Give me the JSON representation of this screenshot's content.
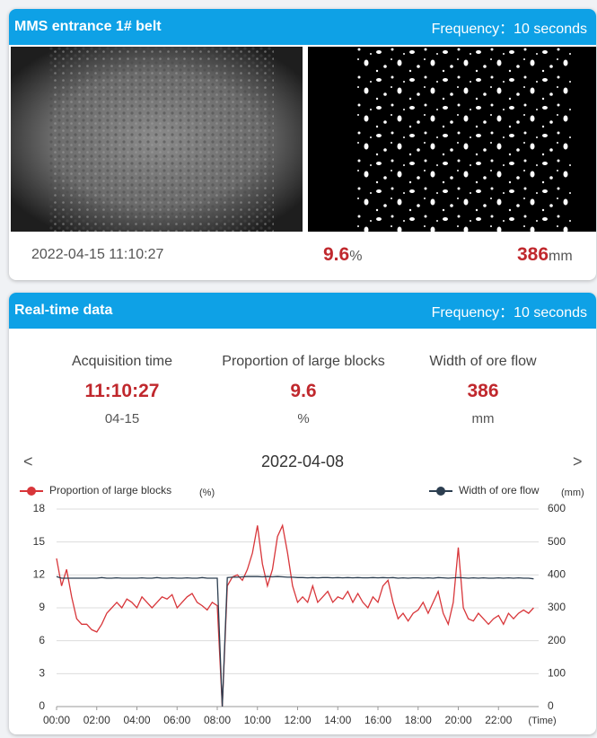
{
  "panel1": {
    "title": "MMS entrance 1# belt",
    "frequency": "Frequency：10 seconds",
    "timestamp": "2022-04-15 11:10:27",
    "proportion": 9.6,
    "proportion_unit": "%",
    "width": 386,
    "width_unit": "mm"
  },
  "panel2": {
    "title": "Real-time data",
    "frequency": "Frequency：10 seconds",
    "metrics": [
      {
        "label": "Acquisition time",
        "value": "11:10:27",
        "sub": "04-15"
      },
      {
        "label": "Proportion of large blocks",
        "value": 9.6,
        "sub": "%"
      },
      {
        "label": "Width of ore flow",
        "value": 386,
        "sub": "mm"
      }
    ],
    "nav": {
      "prev": "<",
      "date": "2022-04-08",
      "next": ">"
    }
  },
  "chart_data": {
    "type": "line",
    "y_unit": "(%)",
    "y2_unit": "(mm)",
    "x_label": "(Time)",
    "grid": true,
    "x": [
      0,
      0.25,
      0.5,
      0.75,
      1,
      1.25,
      1.5,
      1.75,
      2,
      2.25,
      2.5,
      2.75,
      3,
      3.25,
      3.5,
      3.75,
      4,
      4.25,
      4.5,
      4.75,
      5,
      5.25,
      5.5,
      5.75,
      6,
      6.25,
      6.5,
      6.75,
      7,
      7.25,
      7.5,
      7.75,
      8,
      8.25,
      8.5,
      8.75,
      9,
      9.25,
      9.5,
      9.75,
      10,
      10.25,
      10.5,
      10.75,
      11,
      11.25,
      11.5,
      11.75,
      12,
      12.25,
      12.5,
      12.75,
      13,
      13.25,
      13.5,
      13.75,
      14,
      14.25,
      14.5,
      14.75,
      15,
      15.25,
      15.5,
      15.75,
      16,
      16.25,
      16.5,
      16.75,
      17,
      17.25,
      17.5,
      17.75,
      18,
      18.25,
      18.5,
      18.75,
      19,
      19.25,
      19.5,
      19.75,
      20,
      20.25,
      20.5,
      20.75,
      21,
      21.25,
      21.5,
      21.75,
      22,
      22.25,
      22.5,
      22.75,
      23,
      23.25,
      23.5,
      23.75
    ],
    "xlim": [
      0,
      24
    ],
    "xticks": [
      {
        "value": 0,
        "label": "00:00"
      },
      {
        "value": 2,
        "label": "02:00"
      },
      {
        "value": 4,
        "label": "04:00"
      },
      {
        "value": 6,
        "label": "06:00"
      },
      {
        "value": 8,
        "label": "08:00"
      },
      {
        "value": 10,
        "label": "10:00"
      },
      {
        "value": 12,
        "label": "12:00"
      },
      {
        "value": 14,
        "label": "14:00"
      },
      {
        "value": 16,
        "label": "16:00"
      },
      {
        "value": 18,
        "label": "18:00"
      },
      {
        "value": 20,
        "label": "20:00"
      },
      {
        "value": 22,
        "label": "22:00"
      }
    ],
    "ylim": [
      0,
      18
    ],
    "yticks": [
      0,
      3,
      6,
      9,
      12,
      15,
      18
    ],
    "y2lim": [
      0,
      600
    ],
    "y2ticks": [
      0,
      100,
      200,
      300,
      400,
      500,
      600
    ],
    "series": [
      {
        "name": "Proportion of large blocks",
        "color": "#d8363a",
        "values": [
          13.5,
          11,
          12.5,
          10,
          8,
          7.5,
          7.5,
          7,
          6.8,
          7.5,
          8.5,
          9,
          9.5,
          9,
          9.8,
          9.5,
          9,
          10,
          9.5,
          9,
          9.5,
          10,
          9.8,
          10.2,
          9,
          9.5,
          10,
          10.3,
          9.5,
          9.2,
          8.8,
          9.5,
          9.2,
          0,
          11,
          11.8,
          12,
          11.5,
          12.5,
          14,
          16.5,
          13,
          11,
          12.5,
          15.5,
          16.5,
          14,
          11,
          9.5,
          10,
          9.5,
          11,
          9.5,
          10,
          10.5,
          9.5,
          10,
          9.8,
          10.5,
          9.5,
          10.3,
          9.5,
          9,
          10,
          9.5,
          11,
          11.5,
          9.5,
          8,
          8.5,
          7.8,
          8.5,
          8.8,
          9.5,
          8.5,
          9.5,
          10.5,
          8.5,
          7.5,
          9.5,
          14.5,
          9,
          8,
          7.8,
          8.5,
          8,
          7.5,
          8,
          8.3,
          7.5,
          8.5,
          8,
          8.5,
          8.8,
          8.5,
          9
        ]
      },
      {
        "name": "Width of ore flow",
        "color": "#2c3e50",
        "axis": "y2",
        "values": [
          395,
          390,
          390,
          390,
          390,
          390,
          390,
          390,
          390,
          392,
          390,
          390,
          391,
          390,
          390,
          390,
          390,
          391,
          390,
          390,
          392,
          390,
          390,
          391,
          390,
          390,
          391,
          390,
          390,
          392,
          390,
          390,
          390,
          0,
          392,
          393,
          393,
          394,
          395,
          395,
          395,
          394,
          395,
          394,
          395,
          394,
          393,
          393,
          392,
          392,
          391,
          392,
          391,
          392,
          392,
          391,
          392,
          391,
          392,
          391,
          392,
          391,
          391,
          392,
          391,
          392,
          391,
          392,
          390,
          391,
          390,
          391,
          391,
          390,
          391,
          390,
          392,
          391,
          390,
          391,
          392,
          391,
          390,
          391,
          390,
          391,
          390,
          390,
          391,
          390,
          391,
          390,
          391,
          390,
          390,
          388
        ]
      }
    ]
  }
}
